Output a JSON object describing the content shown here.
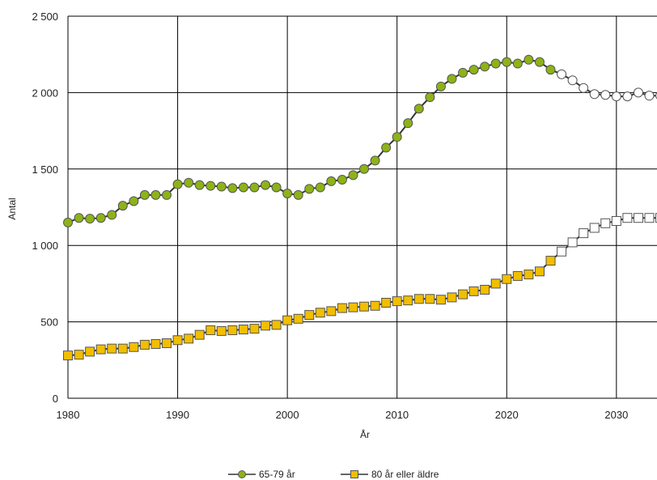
{
  "chart_data": {
    "type": "line",
    "title": "",
    "xlabel": "År",
    "ylabel": "Antal",
    "xlim": [
      1980,
      2034
    ],
    "ylim": [
      0,
      2500
    ],
    "x_ticks": [
      1980,
      1990,
      2000,
      2010,
      2020,
      2030
    ],
    "x_tick_labels": [
      "1980",
      "1990",
      "2000",
      "2010",
      "2020",
      "2030"
    ],
    "y_ticks": [
      0,
      500,
      1000,
      1500,
      2000,
      2500
    ],
    "y_tick_labels": [
      "0",
      "500",
      "1 000",
      "1 500",
      "2 000",
      "2 500"
    ],
    "grid": true,
    "legend_position": "bottom",
    "forecast_start_year": 2025,
    "series": [
      {
        "name": "65-79 år",
        "marker": "circle",
        "color": "#8DB317",
        "forecast_color": "#ffffff",
        "x": [
          1980,
          1981,
          1982,
          1983,
          1984,
          1985,
          1986,
          1987,
          1988,
          1989,
          1990,
          1991,
          1992,
          1993,
          1994,
          1995,
          1996,
          1997,
          1998,
          1999,
          2000,
          2001,
          2002,
          2003,
          2004,
          2005,
          2006,
          2007,
          2008,
          2009,
          2010,
          2011,
          2012,
          2013,
          2014,
          2015,
          2016,
          2017,
          2018,
          2019,
          2020,
          2021,
          2022,
          2023,
          2024,
          2025,
          2026,
          2027,
          2028,
          2029,
          2030,
          2031,
          2032,
          2033,
          2034
        ],
        "values": [
          1150,
          1180,
          1175,
          1180,
          1200,
          1260,
          1290,
          1330,
          1330,
          1330,
          1400,
          1410,
          1395,
          1390,
          1385,
          1375,
          1380,
          1380,
          1395,
          1380,
          1340,
          1330,
          1370,
          1380,
          1420,
          1430,
          1460,
          1500,
          1555,
          1640,
          1710,
          1800,
          1895,
          1970,
          2040,
          2090,
          2130,
          2150,
          2170,
          2190,
          2200,
          2190,
          2215,
          2200,
          2150,
          2120,
          2080,
          2030,
          1990,
          1985,
          1975,
          1975,
          2000,
          1980,
          1980
        ]
      },
      {
        "name": "80 år eller äldre",
        "marker": "square",
        "color": "#F2BE00",
        "forecast_color": "#ffffff",
        "x": [
          1980,
          1981,
          1982,
          1983,
          1984,
          1985,
          1986,
          1987,
          1988,
          1989,
          1990,
          1991,
          1992,
          1993,
          1994,
          1995,
          1996,
          1997,
          1998,
          1999,
          2000,
          2001,
          2002,
          2003,
          2004,
          2005,
          2006,
          2007,
          2008,
          2009,
          2010,
          2011,
          2012,
          2013,
          2014,
          2015,
          2016,
          2017,
          2018,
          2019,
          2020,
          2021,
          2022,
          2023,
          2024,
          2025,
          2026,
          2027,
          2028,
          2029,
          2030,
          2031,
          2032,
          2033,
          2034
        ],
        "values": [
          280,
          285,
          305,
          320,
          325,
          325,
          335,
          350,
          355,
          360,
          380,
          390,
          415,
          445,
          440,
          445,
          450,
          455,
          475,
          480,
          510,
          520,
          545,
          560,
          570,
          590,
          595,
          600,
          605,
          625,
          635,
          640,
          650,
          650,
          645,
          660,
          680,
          700,
          710,
          750,
          780,
          800,
          810,
          830,
          900,
          960,
          1020,
          1080,
          1115,
          1145,
          1160,
          1180,
          1180,
          1180,
          1180
        ]
      }
    ]
  }
}
